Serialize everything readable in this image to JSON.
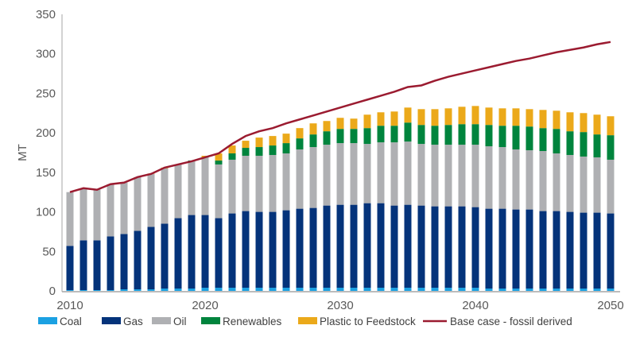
{
  "chart_data": {
    "type": "bar",
    "stacked": true,
    "title": "",
    "xlabel": "",
    "ylabel": "MT",
    "ylim": [
      0,
      350
    ],
    "yticks": [
      "0",
      "50",
      "100",
      "150",
      "200",
      "250",
      "300",
      "350"
    ],
    "xticks": [
      "2010",
      "2020",
      "2030",
      "2040",
      "2050"
    ],
    "grid": false,
    "legend_position": "bottom",
    "categories": [
      2010,
      2011,
      2012,
      2013,
      2014,
      2015,
      2016,
      2017,
      2018,
      2019,
      2020,
      2021,
      2022,
      2023,
      2024,
      2025,
      2026,
      2027,
      2028,
      2029,
      2030,
      2031,
      2032,
      2033,
      2034,
      2035,
      2036,
      2037,
      2038,
      2039,
      2040,
      2041,
      2042,
      2043,
      2044,
      2045,
      2046,
      2047,
      2048,
      2049,
      2050
    ],
    "series": [
      {
        "name": "Coal",
        "type": "bar",
        "color": "#1ba1e2",
        "values": [
          1,
          1,
          1,
          1,
          2,
          2,
          2,
          3,
          3,
          3,
          4,
          4,
          4,
          4,
          4,
          4,
          4,
          4,
          4,
          4,
          4,
          4,
          4,
          4,
          4,
          4,
          4,
          4,
          4,
          4,
          4,
          3,
          3,
          3,
          3,
          3,
          3,
          3,
          3,
          3,
          3
        ]
      },
      {
        "name": "Gas",
        "type": "bar",
        "color": "#04337a",
        "values": [
          56,
          63,
          63,
          68,
          70,
          74,
          79,
          82,
          89,
          93,
          92,
          88,
          94,
          97,
          96,
          96,
          98,
          100,
          101,
          104,
          105,
          105,
          107,
          107,
          104,
          105,
          104,
          103,
          103,
          103,
          102,
          101,
          101,
          100,
          100,
          98,
          98,
          97,
          96,
          96,
          95
        ]
      },
      {
        "name": "Oil",
        "type": "bar",
        "color": "#afb0b3",
        "values": [
          68,
          65,
          64,
          66,
          65,
          68,
          67,
          70,
          68,
          68,
          73,
          68,
          68,
          70,
          71,
          72,
          72,
          75,
          77,
          77,
          78,
          78,
          75,
          77,
          80,
          80,
          78,
          78,
          78,
          78,
          79,
          79,
          78,
          76,
          75,
          76,
          73,
          72,
          71,
          70,
          68
        ]
      },
      {
        "name": "Renewables",
        "type": "bar",
        "color": "#00843d",
        "values": [
          0,
          0,
          0,
          0,
          0,
          0,
          0,
          0,
          0,
          1,
          0,
          5,
          8,
          10,
          11,
          12,
          13,
          14,
          16,
          17,
          18,
          18,
          20,
          21,
          21,
          24,
          24,
          24,
          25,
          26,
          26,
          27,
          27,
          30,
          30,
          29,
          31,
          30,
          31,
          29,
          31
        ]
      },
      {
        "name": "Plastic to Feedstock",
        "type": "bar",
        "color": "#eba91a",
        "values": [
          0,
          0,
          0,
          0,
          0,
          0,
          0.5,
          1,
          0,
          0,
          2,
          9,
          10,
          9,
          12,
          12,
          12,
          13,
          14,
          13,
          14,
          13,
          17,
          17,
          18,
          19,
          20,
          21,
          21,
          22,
          23,
          22,
          22,
          22,
          22,
          23,
          23,
          24,
          24,
          25,
          24
        ]
      },
      {
        "name": "Base case - fossil derived",
        "type": "line",
        "color": "#9b1b30",
        "values": [
          125,
          130,
          128,
          135,
          137,
          144,
          148,
          156,
          160,
          164,
          169,
          174,
          186,
          196,
          202,
          206,
          212,
          217,
          222,
          227,
          232,
          237,
          242,
          247,
          252,
          258,
          260,
          266,
          271,
          275,
          279,
          283,
          287,
          291,
          294,
          298,
          302,
          305,
          308,
          312,
          315
        ]
      }
    ]
  }
}
